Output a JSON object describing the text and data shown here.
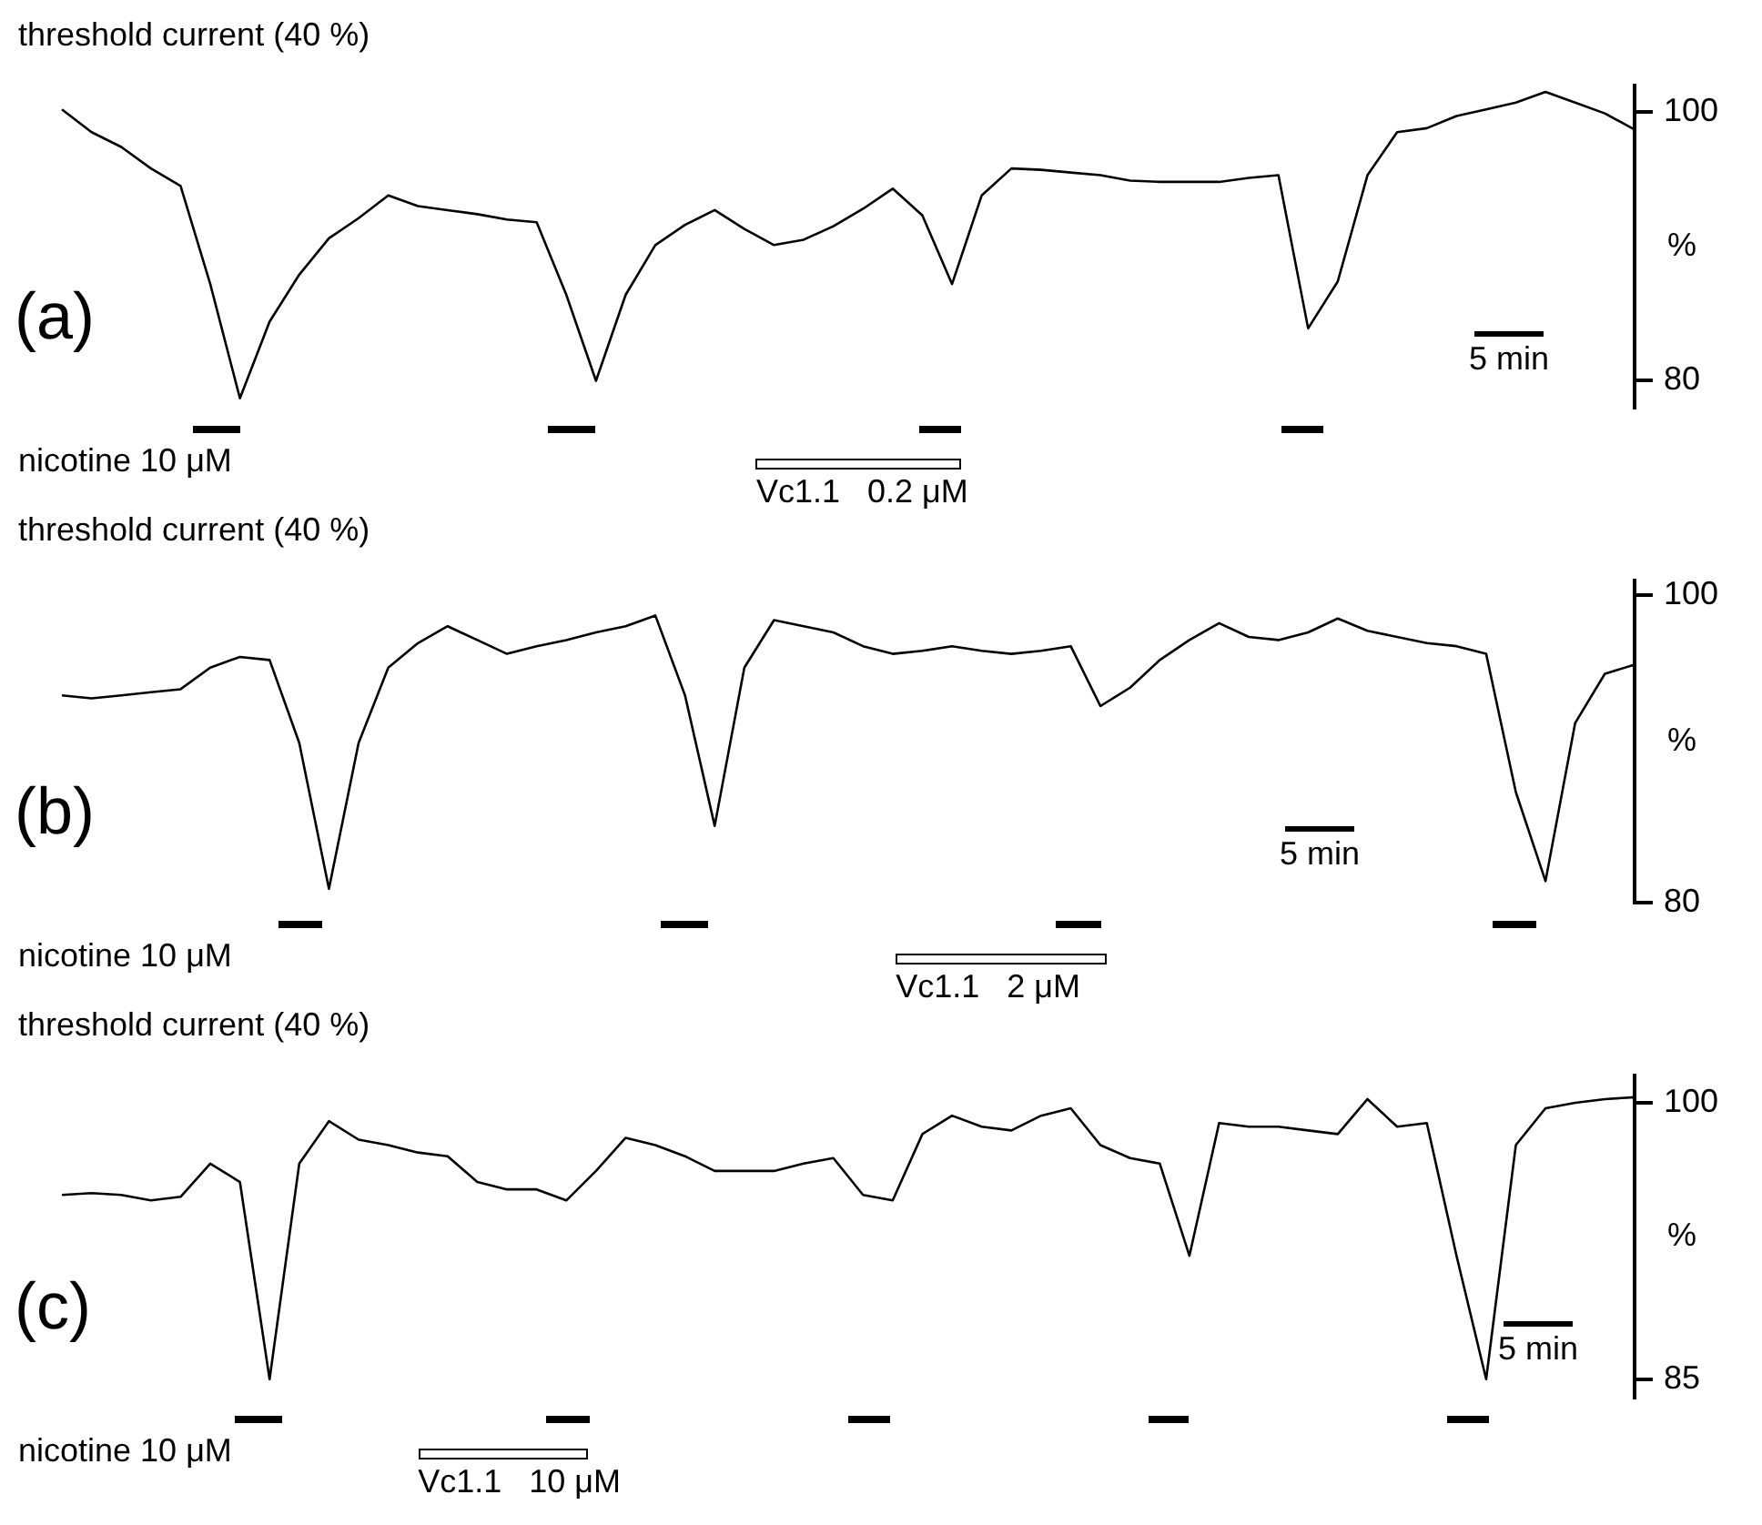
{
  "chart_data": [
    {
      "type": "line",
      "title": "threshold current (40 %)",
      "ylabel": "%",
      "annotations": [
        "(a)",
        "5 min",
        "nicotine 10 μM",
        "Vc1.1   0.2 μM"
      ],
      "ylim": [
        78,
        102
      ],
      "yticks": [
        80,
        100
      ],
      "tick_labels": "y",
      "grid": false,
      "legend": false,
      "marker": "none",
      "line_style": "solid",
      "categories": [
        null,
        null,
        null,
        null,
        null,
        null,
        null,
        null,
        null,
        null,
        null,
        null,
        null,
        null,
        null,
        null,
        null,
        null,
        null,
        null,
        null,
        null,
        null,
        null,
        null,
        null,
        null,
        null,
        null,
        null,
        null,
        null,
        null,
        null,
        null,
        null,
        null,
        null,
        null,
        null,
        null,
        null,
        null,
        null,
        null,
        null,
        null,
        null,
        null,
        null,
        null,
        null,
        null,
        null
      ],
      "series": [
        {
          "color": "#000000",
          "values": [
            100.2,
            98.5,
            97.4,
            95.8,
            94.5,
            87.2,
            78.7,
            84.4,
            87.9,
            90.6,
            92.1,
            93.8,
            93.0,
            92.7,
            92.4,
            92.0,
            91.8,
            86.4,
            80.0,
            86.4,
            90.1,
            91.6,
            92.7,
            91.3,
            90.1,
            90.5,
            91.5,
            92.8,
            94.3,
            92.3,
            87.2,
            93.8,
            95.8,
            95.7,
            95.5,
            95.3,
            94.9,
            94.8,
            94.8,
            94.8,
            95.1,
            95.3,
            83.9,
            87.4,
            95.3,
            98.5,
            98.8,
            99.7,
            100.2,
            100.7,
            101.5,
            100.7,
            99.9,
            98.7
          ]
        }
      ]
    },
    {
      "type": "line",
      "title": "threshold current (40 %)",
      "ylabel": "%",
      "annotations": [
        "(b)",
        "5 min",
        "nicotine 10 μM",
        "Vc1.1   2 μM"
      ],
      "ylim": [
        80,
        101
      ],
      "yticks": [
        80,
        100
      ],
      "tick_labels": "y",
      "grid": false,
      "legend": false,
      "marker": "none",
      "line_style": "solid",
      "categories": [
        null,
        null,
        null,
        null,
        null,
        null,
        null,
        null,
        null,
        null,
        null,
        null,
        null,
        null,
        null,
        null,
        null,
        null,
        null,
        null,
        null,
        null,
        null,
        null,
        null,
        null,
        null,
        null,
        null,
        null,
        null,
        null,
        null,
        null,
        null,
        null,
        null,
        null,
        null,
        null,
        null,
        null,
        null,
        null,
        null,
        null,
        null,
        null,
        null,
        null,
        null,
        null,
        null,
        null
      ],
      "series": [
        {
          "color": "#000000",
          "values": [
            93.5,
            93.3,
            93.5,
            93.7,
            93.9,
            95.3,
            96.0,
            95.8,
            90.4,
            80.9,
            90.4,
            95.3,
            96.9,
            98.0,
            97.1,
            96.2,
            96.7,
            97.1,
            97.6,
            98.0,
            98.7,
            93.5,
            85.0,
            95.3,
            98.4,
            98.0,
            97.6,
            96.7,
            96.2,
            96.4,
            96.7,
            96.4,
            96.2,
            96.4,
            96.7,
            92.8,
            94.0,
            95.8,
            97.1,
            98.2,
            97.3,
            97.1,
            97.6,
            98.5,
            97.7,
            97.3,
            96.9,
            96.7,
            96.2,
            87.2,
            81.4,
            91.7,
            94.9,
            95.5
          ]
        }
      ]
    },
    {
      "type": "line",
      "title": "threshold current (40 %)",
      "ylabel": "%",
      "annotations": [
        "(c)",
        "5 min",
        "nicotine 10 μM",
        "Vc1.1   10 μM"
      ],
      "ylim": [
        84,
        101.5
      ],
      "yticks": [
        85,
        100
      ],
      "tick_labels": "y",
      "grid": false,
      "legend": false,
      "marker": "none",
      "line_style": "solid",
      "categories": [
        null,
        null,
        null,
        null,
        null,
        null,
        null,
        null,
        null,
        null,
        null,
        null,
        null,
        null,
        null,
        null,
        null,
        null,
        null,
        null,
        null,
        null,
        null,
        null,
        null,
        null,
        null,
        null,
        null,
        null,
        null,
        null,
        null,
        null,
        null,
        null,
        null,
        null,
        null,
        null,
        null,
        null,
        null,
        null,
        null,
        null,
        null,
        null,
        null,
        null,
        null,
        null,
        null,
        null
      ],
      "series": [
        {
          "color": "#000000",
          "values": [
            95.0,
            95.1,
            95.0,
            94.7,
            94.9,
            96.7,
            95.7,
            85.0,
            96.7,
            99.0,
            98.0,
            97.7,
            97.3,
            97.1,
            95.7,
            95.3,
            95.3,
            94.7,
            96.3,
            98.1,
            97.7,
            97.1,
            96.3,
            96.3,
            96.3,
            96.7,
            97.0,
            95.0,
            94.7,
            98.3,
            99.3,
            98.7,
            98.5,
            99.3,
            99.7,
            97.7,
            97.0,
            96.7,
            91.7,
            98.9,
            98.7,
            98.7,
            98.5,
            98.3,
            100.2,
            98.7,
            98.9,
            91.7,
            85.0,
            97.7,
            99.7,
            100.0,
            100.2,
            100.3
          ]
        }
      ]
    }
  ]
}
